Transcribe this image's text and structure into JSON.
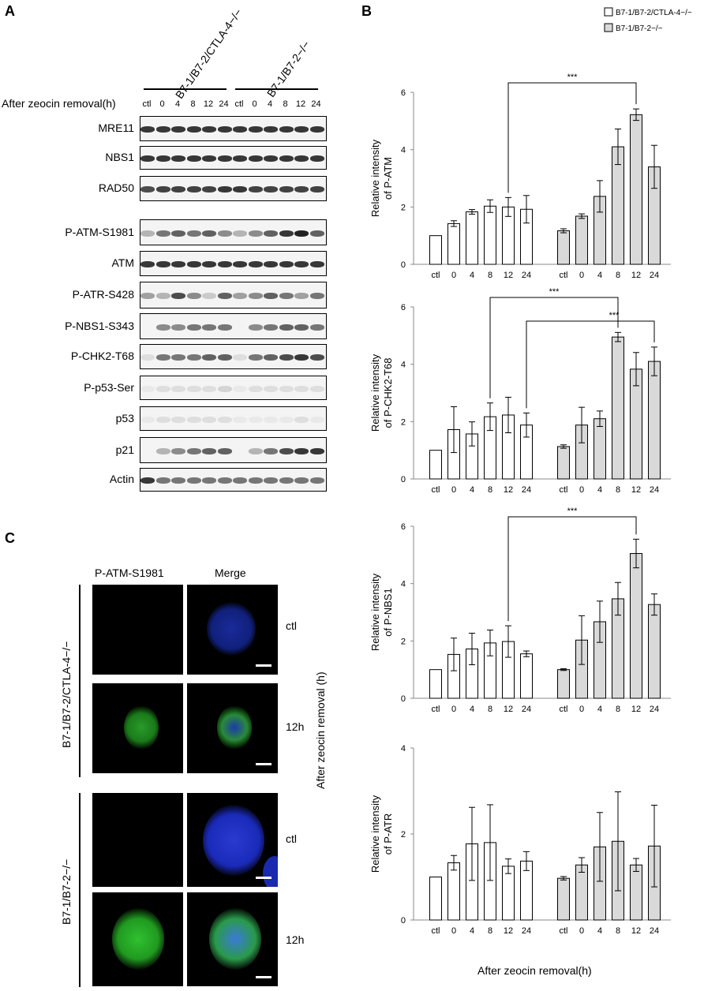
{
  "panels": {
    "a": "A",
    "b": "B",
    "c": "C"
  },
  "panelA": {
    "group1": "B7-1/B7-2/CTLA-4−/−",
    "group2": "B7-1/B7-2−/−",
    "row_header": "After zeocin removal(h)",
    "lanes": [
      "ctl",
      "0",
      "4",
      "8",
      "12",
      "24",
      "ctl",
      "0",
      "4",
      "8",
      "12",
      "24"
    ],
    "blots": [
      {
        "label": "MRE11",
        "y": 147,
        "h": 32,
        "int": [
          0.9,
          0.9,
          0.9,
          0.9,
          0.9,
          0.9,
          0.9,
          0.9,
          0.9,
          0.9,
          0.9,
          0.9
        ]
      },
      {
        "label": "NBS1",
        "y": 185,
        "h": 30,
        "int": [
          0.9,
          0.9,
          0.9,
          0.9,
          0.9,
          0.9,
          0.9,
          0.9,
          0.9,
          0.9,
          0.9,
          0.9
        ]
      },
      {
        "label": "RAD50",
        "y": 223,
        "h": 32,
        "int": [
          0.8,
          0.85,
          0.85,
          0.85,
          0.85,
          0.9,
          0.9,
          0.85,
          0.85,
          0.85,
          0.85,
          0.85
        ]
      },
      {
        "label": "P-ATM-S1981",
        "y": 278,
        "h": 33,
        "int": [
          0.3,
          0.6,
          0.7,
          0.6,
          0.7,
          0.5,
          0.3,
          0.5,
          0.7,
          0.9,
          1.0,
          0.7
        ]
      },
      {
        "label": "ATM",
        "y": 318,
        "h": 32,
        "int": [
          0.9,
          0.9,
          0.9,
          0.9,
          0.9,
          0.9,
          0.9,
          0.9,
          0.9,
          0.9,
          0.9,
          0.9
        ]
      },
      {
        "label": "P-ATR-S428",
        "y": 357,
        "h": 34,
        "int": [
          0.4,
          0.3,
          0.8,
          0.5,
          0.2,
          0.7,
          0.4,
          0.5,
          0.7,
          0.6,
          0.4,
          0.6
        ]
      },
      {
        "label": "P-NBS1-S343",
        "y": 397,
        "h": 33,
        "int": [
          0.0,
          0.5,
          0.5,
          0.6,
          0.6,
          0.6,
          0.0,
          0.5,
          0.6,
          0.7,
          0.7,
          0.6
        ]
      },
      {
        "label": "P-CHK2-T68",
        "y": 436,
        "h": 32,
        "int": [
          0.1,
          0.6,
          0.6,
          0.6,
          0.7,
          0.7,
          0.1,
          0.6,
          0.7,
          0.8,
          0.9,
          0.8
        ]
      },
      {
        "label": "P-p53-Ser",
        "y": 476,
        "h": 31,
        "int": [
          0.05,
          0.1,
          0.1,
          0.1,
          0.1,
          0.15,
          0.05,
          0.1,
          0.1,
          0.1,
          0.1,
          0.1
        ]
      },
      {
        "label": "p53",
        "y": 515,
        "h": 31,
        "int": [
          0.05,
          0.1,
          0.1,
          0.1,
          0.1,
          0.1,
          0.05,
          0.05,
          0.05,
          0.05,
          0.1,
          0.05
        ]
      },
      {
        "label": "p21",
        "y": 554,
        "h": 33,
        "int": [
          0.0,
          0.3,
          0.5,
          0.6,
          0.7,
          0.7,
          0.0,
          0.3,
          0.6,
          0.8,
          0.9,
          0.9
        ]
      },
      {
        "label": "Actin",
        "y": 593,
        "h": 30,
        "int": [
          0.9,
          0.6,
          0.6,
          0.6,
          0.6,
          0.6,
          0.6,
          0.6,
          0.6,
          0.6,
          0.6,
          0.6
        ]
      }
    ]
  },
  "panelC": {
    "col1": "P-ATM-S1981",
    "col2": "Merge",
    "group1": "B7-1/B7-2/CTLA-4−/−",
    "group2": "B7-1/B7-2−/−",
    "times": [
      "ctl",
      "12h",
      "ctl",
      "12h"
    ],
    "axis": "After zeocin removal (h)"
  },
  "legend": {
    "series1": "B7-1/B7-2/CTLA-4−/−",
    "series2": "B7-1/B7-2−/−",
    "color1": "#ffffff",
    "color2": "#d9d9d9"
  },
  "xlabel_bottom": "After zeocin removal(h)",
  "chart_data": [
    {
      "type": "bar",
      "ylabel": [
        "Relative intensity",
        "of P-ATM"
      ],
      "ylim": [
        0,
        6
      ],
      "yticks": [
        0,
        2,
        4,
        6
      ],
      "categories": [
        "ctl",
        "0",
        "4",
        "8",
        "12",
        "24"
      ],
      "series": [
        {
          "name": "B7-1/B7-2/CTLA-4−/−",
          "values": [
            1.0,
            1.42,
            1.83,
            2.03,
            2.0,
            1.92
          ],
          "errors": [
            0.0,
            0.1,
            0.08,
            0.22,
            0.33,
            0.48
          ]
        },
        {
          "name": "B7-1/B7-2−/−",
          "values": [
            1.17,
            1.68,
            2.37,
            4.1,
            5.22,
            3.4
          ],
          "errors": [
            0.07,
            0.08,
            0.55,
            0.62,
            0.2,
            0.75
          ]
        }
      ],
      "annotations": [
        {
          "text": "***",
          "from": [
            0,
            4
          ],
          "to": [
            1,
            4
          ]
        }
      ]
    },
    {
      "type": "bar",
      "ylabel": [
        "Relative intensity",
        "of P-CHK2-T68"
      ],
      "ylim": [
        0,
        6
      ],
      "yticks": [
        0,
        2,
        4,
        6
      ],
      "categories": [
        "ctl",
        "0",
        "4",
        "8",
        "12",
        "24"
      ],
      "series": [
        {
          "name": "B7-1/B7-2/CTLA-4−/−",
          "values": [
            1.0,
            1.72,
            1.57,
            2.17,
            2.23,
            1.88
          ],
          "errors": [
            0.0,
            0.8,
            0.42,
            0.48,
            0.62,
            0.42
          ]
        },
        {
          "name": "B7-1/B7-2−/−",
          "values": [
            1.13,
            1.88,
            2.1,
            4.95,
            3.83,
            4.1
          ],
          "errors": [
            0.06,
            0.62,
            0.27,
            0.16,
            0.58,
            0.5
          ]
        }
      ],
      "annotations": [
        {
          "text": "***",
          "from": [
            0,
            3
          ],
          "to": [
            1,
            3
          ]
        },
        {
          "text": "***",
          "from": [
            0,
            5
          ],
          "to": [
            1,
            5
          ]
        }
      ]
    },
    {
      "type": "bar",
      "ylabel": [
        "Relative intensity",
        "of P-NBS1"
      ],
      "ylim": [
        0,
        6
      ],
      "yticks": [
        0,
        2,
        4,
        6
      ],
      "categories": [
        "ctl",
        "0",
        "4",
        "8",
        "12",
        "24"
      ],
      "series": [
        {
          "name": "B7-1/B7-2/CTLA-4−/−",
          "values": [
            1.0,
            1.53,
            1.72,
            1.93,
            1.98,
            1.55
          ],
          "errors": [
            0.0,
            0.57,
            0.55,
            0.45,
            0.55,
            0.1
          ]
        },
        {
          "name": "B7-1/B7-2−/−",
          "values": [
            1.0,
            2.03,
            2.67,
            3.47,
            5.05,
            3.27
          ],
          "errors": [
            0.03,
            0.85,
            0.72,
            0.57,
            0.5,
            0.37
          ]
        }
      ],
      "annotations": [
        {
          "text": "***",
          "from": [
            0,
            4
          ],
          "to": [
            1,
            4
          ]
        }
      ]
    },
    {
      "type": "bar",
      "ylabel": [
        "Relative intensity",
        "of P-ATR"
      ],
      "ylim": [
        0,
        4
      ],
      "yticks": [
        0,
        2,
        4
      ],
      "categories": [
        "ctl",
        "0",
        "4",
        "8",
        "12",
        "24"
      ],
      "series": [
        {
          "name": "B7-1/B7-2/CTLA-4−/−",
          "values": [
            1.0,
            1.33,
            1.77,
            1.8,
            1.25,
            1.37
          ],
          "errors": [
            0.0,
            0.17,
            0.85,
            0.88,
            0.17,
            0.22
          ]
        },
        {
          "name": "B7-1/B7-2−/−",
          "values": [
            0.97,
            1.28,
            1.7,
            1.83,
            1.28,
            1.72
          ],
          "errors": [
            0.04,
            0.17,
            0.8,
            1.15,
            0.15,
            0.95
          ]
        }
      ],
      "annotations": []
    }
  ]
}
